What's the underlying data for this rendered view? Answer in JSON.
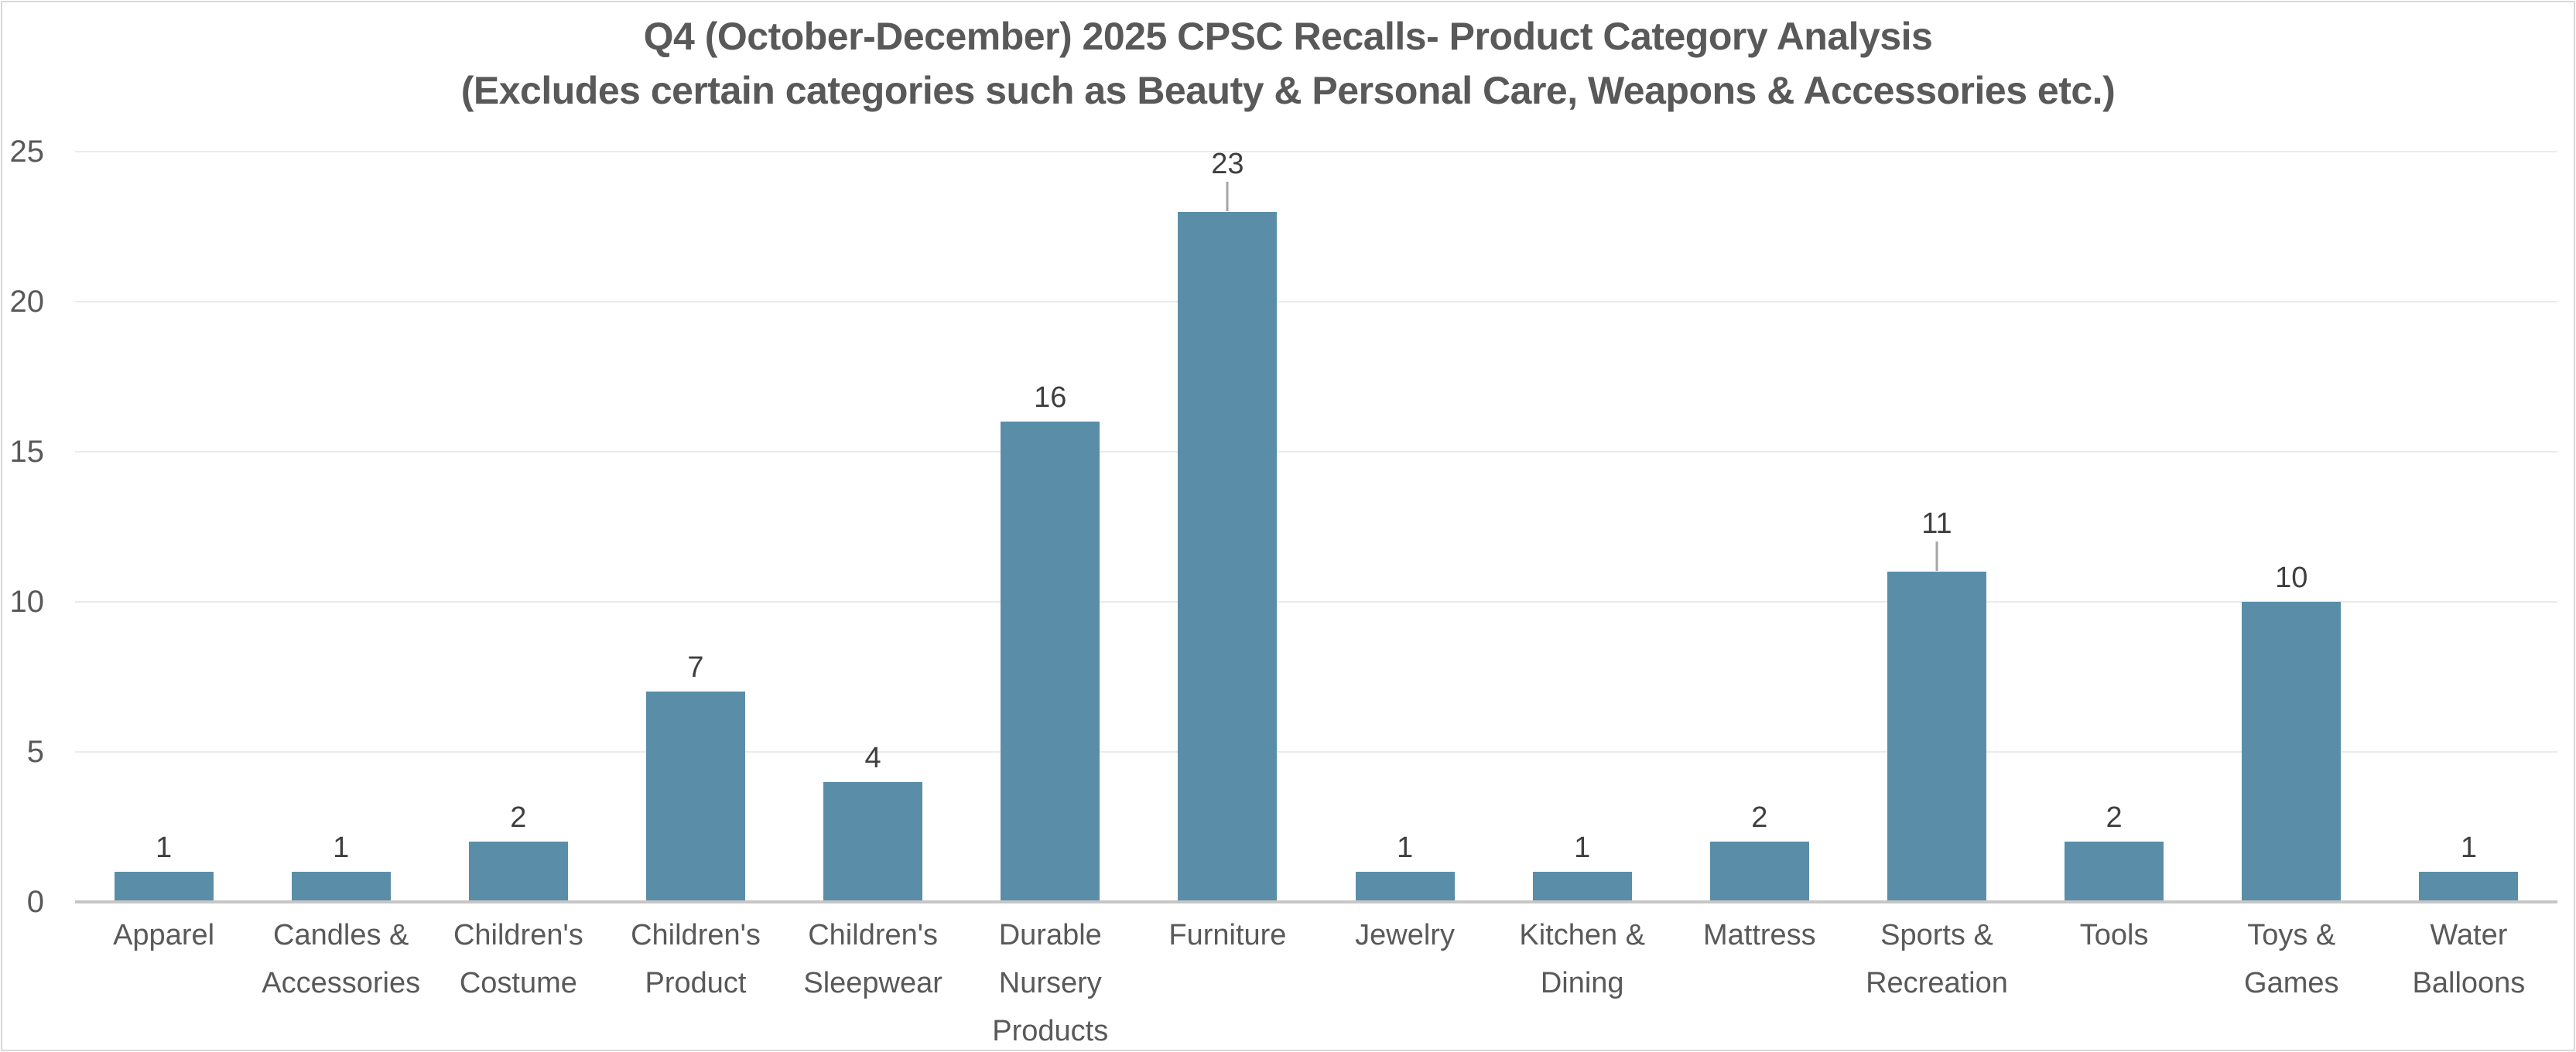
{
  "titles": {
    "line1": "Q4 (October-December) 2025 CPSC Recalls- Product Category Analysis",
    "line2": "(Excludes certain categories such as Beauty & Personal Care, Weapons & Accessories etc.)"
  },
  "colors": {
    "bar": "#5A8EA8",
    "title_text": "#595959",
    "axis_text": "#595959",
    "data_label_text": "#3F3F3F",
    "gridline": "#EBEBEB",
    "axis_line": "#C6C6C6",
    "leader_line": "#A6A6A6",
    "chart_border": "#D9D9D9",
    "background": "#FFFFFF"
  },
  "chart_data": {
    "type": "bar",
    "title": "Q4 (October-December) 2025 CPSC Recalls- Product Category Analysis (Excludes certain categories such as Beauty & Personal Care, Weapons & Accessories etc.)",
    "categories": [
      "Apparel",
      "Candles &\nAccessories",
      "Children's\nCostume",
      "Children's\nProduct",
      "Children's\nSleepwear",
      "Durable\nNursery\nProducts",
      "Furniture",
      "Jewelry",
      "Kitchen &\nDining",
      "Mattress",
      "Sports &\nRecreation",
      "Tools",
      "Toys &\nGames",
      "Water\nBalloons"
    ],
    "values": [
      1,
      1,
      2,
      7,
      4,
      16,
      23,
      1,
      1,
      2,
      11,
      2,
      10,
      1
    ],
    "data_labels_shown": true,
    "labels_with_leader_lines": [
      6,
      10
    ],
    "xlabel": "",
    "ylabel": "",
    "ylim": [
      0,
      25
    ],
    "yticks": [
      0,
      5,
      10,
      15,
      20,
      25
    ],
    "grid": "horizontal",
    "legend": "none"
  }
}
